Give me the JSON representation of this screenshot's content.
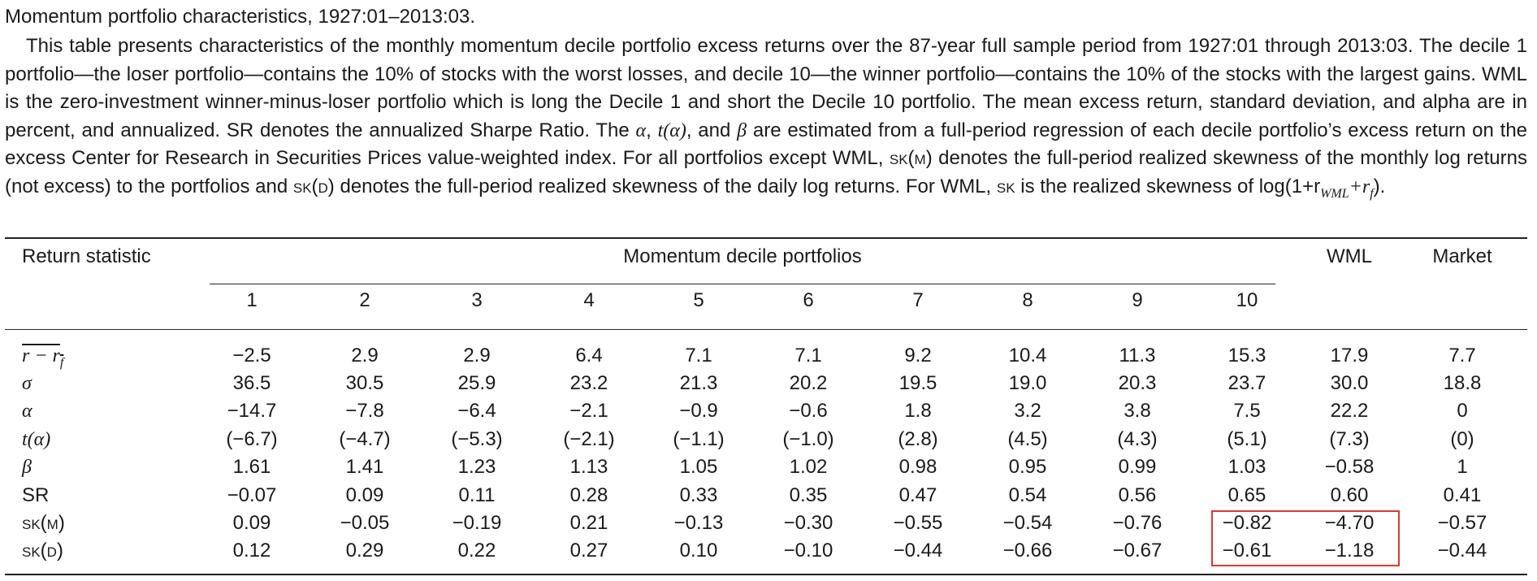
{
  "caption": {
    "title": "Momentum portfolio characteristics, 1927:01–2013:03.",
    "p1": "This table presents characteristics of the monthly momentum decile portfolio excess returns over the 87-year full sample period from 1927:01 through 2013:03. The decile 1 portfolio—the loser portfolio—contains the 10% of stocks with the worst losses, and decile 10—the winner portfolio—contains the 10% of the stocks with the largest gains. WML is the zero-investment winner-minus-loser portfolio which is long the Decile 1 and short the Decile 10 portfolio. The mean excess return, standard deviation, and alpha are in percent, and annualized. SR denotes the annualized Sharpe Ratio. The ",
    "alpha_sym": "α",
    "comma1": ", ",
    "t_alpha": "t(α)",
    "and_word": ", and ",
    "beta_sym": "β",
    "p2": " are estimated from a full-period regression of each decile portfolio’s excess return on the excess Center for Research in Securities Prices value-weighted index. For all portfolios except WML, ",
    "sk_m": "sk(m)",
    "p3": " denotes the full-period realized skewness of the monthly log returns (not excess) to the portfolios and ",
    "sk_d": "sk(d)",
    "p4": " denotes the full-period realized skewness of the daily log returns. For WML, ",
    "sk": "sk",
    "p5": " is the realized skewness of ",
    "log_expr": "log(1+r",
    "log_sub1": "WML",
    "log_mid": "+r",
    "log_sub2": "f",
    "log_end": ")."
  },
  "table": {
    "header_return_statistic": "Return statistic",
    "header_group": "Momentum decile portfolios",
    "header_wml": "WML",
    "header_market": "Market",
    "deciles": [
      "1",
      "2",
      "3",
      "4",
      "5",
      "6",
      "7",
      "8",
      "9",
      "10"
    ],
    "rows": [
      {
        "label": "r − r",
        "label_sub": "f",
        "values": [
          "−2.5",
          "2.9",
          "2.9",
          "6.4",
          "7.1",
          "7.1",
          "9.2",
          "10.4",
          "11.3",
          "15.3",
          "17.9",
          "7.7"
        ]
      },
      {
        "label": "σ",
        "values": [
          "36.5",
          "30.5",
          "25.9",
          "23.2",
          "21.3",
          "20.2",
          "19.5",
          "19.0",
          "20.3",
          "23.7",
          "30.0",
          "18.8"
        ]
      },
      {
        "label": "α",
        "values": [
          "−14.7",
          "−7.8",
          "−6.4",
          "−2.1",
          "−0.9",
          "−0.6",
          "1.8",
          "3.2",
          "3.8",
          "7.5",
          "22.2",
          "0"
        ]
      },
      {
        "label": "t(α)",
        "values": [
          "(−6.7)",
          "(−4.7)",
          "(−5.3)",
          "(−2.1)",
          "(−1.1)",
          "(−1.0)",
          "(2.8)",
          "(4.5)",
          "(4.3)",
          "(5.1)",
          "(7.3)",
          "(0)"
        ]
      },
      {
        "label": "β",
        "values": [
          "1.61",
          "1.41",
          "1.23",
          "1.13",
          "1.05",
          "1.02",
          "0.98",
          "0.95",
          "0.99",
          "1.03",
          "−0.58",
          "1"
        ]
      },
      {
        "label": "SR",
        "values": [
          "−0.07",
          "0.09",
          "0.11",
          "0.28",
          "0.33",
          "0.35",
          "0.47",
          "0.54",
          "0.56",
          "0.65",
          "0.60",
          "0.41"
        ]
      },
      {
        "label": "sk(m)",
        "values": [
          "0.09",
          "−0.05",
          "−0.19",
          "0.21",
          "−0.13",
          "−0.30",
          "−0.55",
          "−0.54",
          "−0.76",
          "−0.82",
          "−4.70",
          "−0.57"
        ]
      },
      {
        "label": "sk(d)",
        "values": [
          "0.12",
          "0.29",
          "0.22",
          "0.27",
          "0.10",
          "−0.10",
          "−0.44",
          "−0.66",
          "−0.67",
          "−0.61",
          "−1.18",
          "−0.44"
        ]
      }
    ],
    "highlight_color": "#d83a3a"
  }
}
